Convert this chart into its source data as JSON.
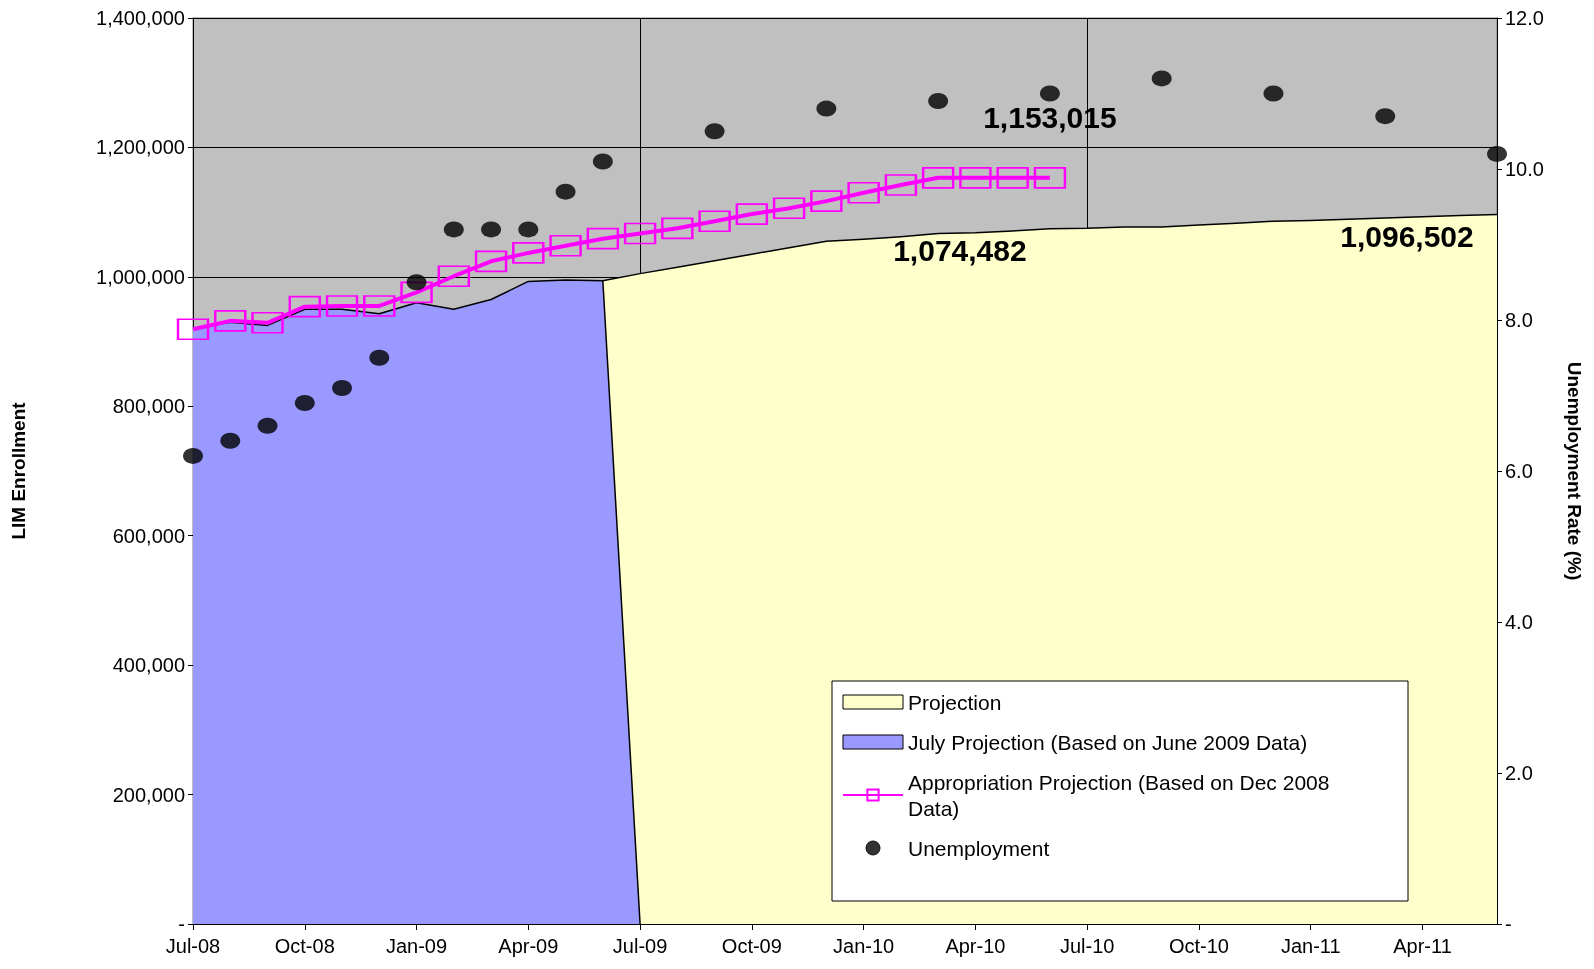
{
  "chart_data": {
    "type": "area",
    "xlabel": null,
    "ylabel": "LIM Enrollment",
    "y2label": "Unemployment Rate (%)",
    "categories": [
      "Jul-08",
      null,
      null,
      "Oct-08",
      null,
      null,
      "Jan-09",
      null,
      null,
      "Apr-09",
      null,
      null,
      "Jul-09",
      null,
      null,
      "Oct-09",
      null,
      null,
      "Jan-10",
      null,
      null,
      "Apr-10",
      null,
      null,
      "Jul-10",
      null,
      null,
      "Oct-10",
      null,
      null,
      "Jan-11",
      null,
      null,
      "Apr-11",
      null,
      null
    ],
    "ylim": [
      0,
      1400000
    ],
    "yticks": [
      {
        "value": 0,
        "label": "-"
      },
      {
        "value": 200000,
        "label": "200,000"
      },
      {
        "value": 400000,
        "label": "400,000"
      },
      {
        "value": 600000,
        "label": "600,000"
      },
      {
        "value": 800000,
        "label": "800,000"
      },
      {
        "value": 1000000,
        "label": "1,000,000"
      },
      {
        "value": 1200000,
        "label": "1,200,000"
      },
      {
        "value": 1400000,
        "label": "1,400,000"
      }
    ],
    "y2lim": [
      0,
      12
    ],
    "y2ticks": [
      {
        "value": 0,
        "label": "-"
      },
      {
        "value": 2,
        "label": "2.0"
      },
      {
        "value": 4,
        "label": "4.0"
      },
      {
        "value": 6,
        "label": "6.0"
      },
      {
        "value": 8,
        "label": "8.0"
      },
      {
        "value": 10,
        "label": "10.0"
      },
      {
        "value": 12,
        "label": "12.0"
      }
    ],
    "grid": true,
    "legend": "bottom right",
    "series": [
      {
        "name": "Projection",
        "type": "area",
        "color": "#ffffcc",
        "marker": "none",
        "values": [
          null,
          null,
          null,
          null,
          null,
          null,
          null,
          null,
          null,
          null,
          null,
          994000,
          1005000,
          1015000,
          1025000,
          1035000,
          1045000,
          1055000,
          1058000,
          1062000,
          1067000,
          1068000,
          1071000,
          1074482,
          1075000,
          1077000,
          1077000,
          1080000,
          1083000,
          1086000,
          1087000,
          1089000,
          1091000,
          1093000,
          1095000,
          1096502
        ],
        "value_labels": [
          null,
          null,
          null,
          null,
          null,
          null,
          null,
          null,
          null,
          null,
          null,
          null,
          null,
          null,
          null,
          null,
          null,
          null,
          null,
          null,
          null,
          null,
          null,
          "1,074,482",
          null,
          null,
          null,
          null,
          null,
          null,
          null,
          null,
          null,
          null,
          null,
          "1,096,502"
        ]
      },
      {
        "name": "July Projection (Based on June 2009 Data)",
        "type": "area",
        "color": "#9999ff",
        "marker": "none",
        "values": [
          920000,
          930000,
          925000,
          950000,
          950000,
          943000,
          960000,
          950000,
          965000,
          993000,
          995000,
          994000,
          0,
          null,
          null,
          null,
          null,
          null,
          null,
          null,
          null,
          null,
          null,
          null,
          null,
          null,
          null,
          null,
          null,
          null,
          null,
          null,
          null,
          null,
          null,
          null
        ]
      },
      {
        "name": "Appropriation Projection (Based on Dec 2008 Data)",
        "type": "line",
        "color": "#ff00ff",
        "marker": "square",
        "values": [
          919000,
          932000,
          929000,
          954000,
          955000,
          955000,
          976000,
          1001000,
          1024000,
          1037000,
          1048000,
          1059000,
          1067000,
          1075000,
          1086000,
          1097000,
          1106000,
          1117000,
          1130000,
          1142000,
          1153015,
          1153015,
          1153015,
          1153015,
          null,
          null,
          null,
          null,
          null,
          null,
          null,
          null,
          null,
          null,
          null,
          null
        ],
        "value_labels": [
          null,
          null,
          null,
          null,
          null,
          null,
          null,
          null,
          null,
          null,
          null,
          null,
          null,
          null,
          null,
          null,
          null,
          null,
          null,
          null,
          null,
          null,
          null,
          "1,153,015",
          null,
          null,
          null,
          null,
          null,
          null,
          null,
          null,
          null,
          null,
          null,
          null
        ]
      },
      {
        "name": "Unemployment",
        "type": "scatter",
        "axis": "y2",
        "color": "#000000",
        "marker": "circle",
        "values": [
          6.2,
          6.4,
          6.6,
          6.9,
          7.1,
          7.5,
          8.5,
          9.2,
          9.2,
          9.2,
          9.7,
          10.1,
          null,
          null,
          10.5,
          null,
          null,
          10.8,
          null,
          null,
          10.9,
          null,
          null,
          11.0,
          null,
          null,
          11.2,
          null,
          null,
          11.0,
          null,
          null,
          10.7,
          null,
          null,
          10.2
        ]
      }
    ]
  }
}
